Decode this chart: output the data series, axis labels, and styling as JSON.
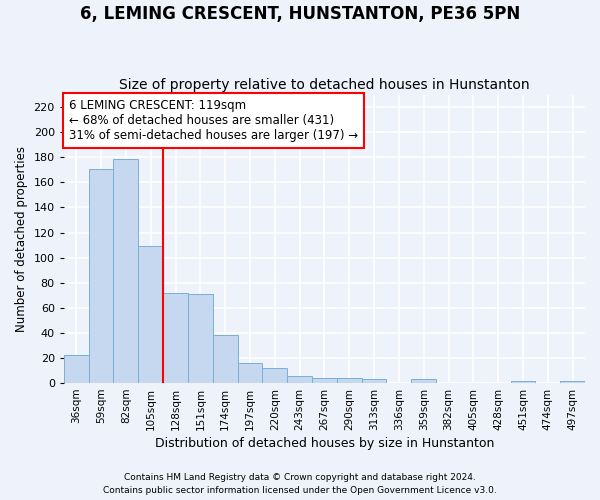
{
  "title": "6, LEMING CRESCENT, HUNSTANTON, PE36 5PN",
  "subtitle": "Size of property relative to detached houses in Hunstanton",
  "xlabel": "Distribution of detached houses by size in Hunstanton",
  "ylabel": "Number of detached properties",
  "categories": [
    "36sqm",
    "59sqm",
    "82sqm",
    "105sqm",
    "128sqm",
    "151sqm",
    "174sqm",
    "197sqm",
    "220sqm",
    "243sqm",
    "267sqm",
    "290sqm",
    "313sqm",
    "336sqm",
    "359sqm",
    "382sqm",
    "405sqm",
    "428sqm",
    "451sqm",
    "474sqm",
    "497sqm"
  ],
  "values": [
    22,
    171,
    179,
    109,
    72,
    71,
    38,
    16,
    12,
    6,
    4,
    4,
    3,
    0,
    3,
    0,
    0,
    0,
    2,
    0,
    2
  ],
  "bar_color": "#c5d8f0",
  "bar_edge_color": "#7aafd4",
  "vline_x": 3.5,
  "vline_color": "red",
  "annotation_text": "6 LEMING CRESCENT: 119sqm\n← 68% of detached houses are smaller (431)\n31% of semi-detached houses are larger (197) →",
  "annotation_box_color": "white",
  "annotation_box_edge": "red",
  "ylim": [
    0,
    230
  ],
  "yticks": [
    0,
    20,
    40,
    60,
    80,
    100,
    120,
    140,
    160,
    180,
    200,
    220
  ],
  "footer1": "Contains HM Land Registry data © Crown copyright and database right 2024.",
  "footer2": "Contains public sector information licensed under the Open Government Licence v3.0.",
  "background_color": "#eef2fa",
  "grid_color": "white",
  "title_fontsize": 12,
  "subtitle_fontsize": 10,
  "annotation_fontsize": 8.5
}
